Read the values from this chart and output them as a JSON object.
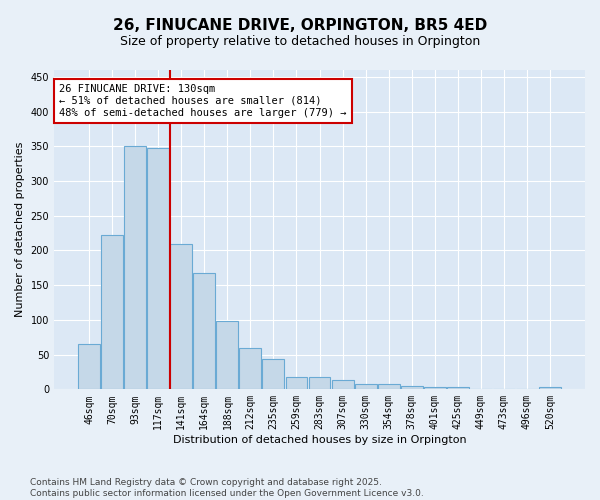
{
  "title": "26, FINUCANE DRIVE, ORPINGTON, BR5 4ED",
  "subtitle": "Size of property relative to detached houses in Orpington",
  "xlabel": "Distribution of detached houses by size in Orpington",
  "ylabel": "Number of detached properties",
  "categories": [
    "46sqm",
    "70sqm",
    "93sqm",
    "117sqm",
    "141sqm",
    "164sqm",
    "188sqm",
    "212sqm",
    "235sqm",
    "259sqm",
    "283sqm",
    "307sqm",
    "330sqm",
    "354sqm",
    "378sqm",
    "401sqm",
    "425sqm",
    "449sqm",
    "473sqm",
    "496sqm",
    "520sqm"
  ],
  "values": [
    65,
    222,
    350,
    348,
    210,
    168,
    98,
    60,
    44,
    18,
    18,
    13,
    8,
    7,
    5,
    4,
    4,
    0,
    0,
    0,
    3
  ],
  "bar_color": "#c5d8e8",
  "bar_edge_color": "#6aaad4",
  "bar_linewidth": 0.8,
  "vline_x": 3.5,
  "vline_color": "#cc0000",
  "vline_linewidth": 1.5,
  "annotation_title": "26 FINUCANE DRIVE: 130sqm",
  "annotation_line1": "← 51% of detached houses are smaller (814)",
  "annotation_line2": "48% of semi-detached houses are larger (779) →",
  "annotation_box_color": "#cc0000",
  "bg_color": "#e8f0f8",
  "plot_bg_color": "#dce8f5",
  "grid_color": "#ffffff",
  "ylim": [
    0,
    460
  ],
  "yticks": [
    0,
    50,
    100,
    150,
    200,
    250,
    300,
    350,
    400,
    450
  ],
  "footer_line1": "Contains HM Land Registry data © Crown copyright and database right 2025.",
  "footer_line2": "Contains public sector information licensed under the Open Government Licence v3.0.",
  "title_fontsize": 11,
  "subtitle_fontsize": 9,
  "label_fontsize": 8,
  "tick_fontsize": 7,
  "annotation_fontsize": 7.5,
  "footer_fontsize": 6.5
}
